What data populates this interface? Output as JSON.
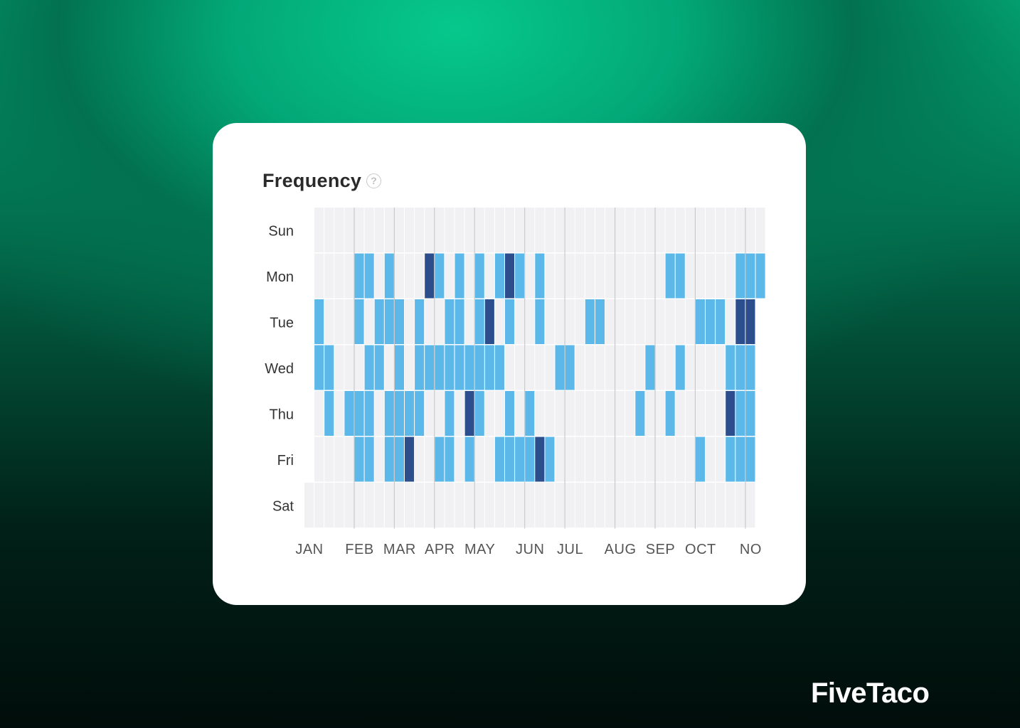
{
  "card": {
    "title": "Frequency",
    "help_icon": "question-circle-icon"
  },
  "brand": {
    "name": "FiveTaco"
  },
  "chart_data": {
    "type": "heatmap",
    "title": "Frequency",
    "y_categories": [
      "Sun",
      "Mon",
      "Tue",
      "Wed",
      "Thu",
      "Fri",
      "Sat"
    ],
    "x_tick_labels": [
      {
        "label": "JAN",
        "week": 0
      },
      {
        "label": "FEB",
        "week": 5
      },
      {
        "label": "MAR",
        "week": 9
      },
      {
        "label": "APR",
        "week": 13
      },
      {
        "label": "MAY",
        "week": 17
      },
      {
        "label": "JUN",
        "week": 22
      },
      {
        "label": "JUL",
        "week": 26
      },
      {
        "label": "AUG",
        "week": 31
      },
      {
        "label": "SEP",
        "week": 35
      },
      {
        "label": "OCT",
        "week": 39
      },
      {
        "label": "NO",
        "week": 44
      }
    ],
    "weeks": 46,
    "levels": {
      "0": "none",
      "1": "active",
      "2": "high"
    },
    "colors": {
      "empty": "#f1f1f3",
      "level1": "#5cb8e8",
      "level2": "#2c4e8c",
      "grid": "#ffffff",
      "month_line": "#c9c9c9"
    },
    "cells": [
      [
        2,
        45,
        1
      ],
      [
        1,
        5,
        1
      ],
      [
        1,
        6,
        1
      ],
      [
        1,
        8,
        1
      ],
      [
        1,
        12,
        2
      ],
      [
        1,
        13,
        1
      ],
      [
        1,
        15,
        1
      ],
      [
        1,
        17,
        1
      ],
      [
        1,
        19,
        1
      ],
      [
        1,
        20,
        2
      ],
      [
        1,
        21,
        1
      ],
      [
        1,
        23,
        1
      ],
      [
        1,
        36,
        1
      ],
      [
        1,
        37,
        1
      ],
      [
        1,
        43,
        1
      ],
      [
        1,
        44,
        1
      ],
      [
        1,
        45,
        1
      ],
      [
        2,
        1,
        1
      ],
      [
        2,
        5,
        1
      ],
      [
        2,
        7,
        1
      ],
      [
        2,
        8,
        1
      ],
      [
        2,
        9,
        1
      ],
      [
        2,
        11,
        1
      ],
      [
        2,
        14,
        1
      ],
      [
        2,
        15,
        1
      ],
      [
        2,
        17,
        1
      ],
      [
        2,
        18,
        2
      ],
      [
        2,
        20,
        1
      ],
      [
        2,
        23,
        1
      ],
      [
        2,
        28,
        1
      ],
      [
        2,
        29,
        1
      ],
      [
        2,
        39,
        1
      ],
      [
        2,
        40,
        1
      ],
      [
        2,
        41,
        1
      ],
      [
        2,
        43,
        2
      ],
      [
        2,
        44,
        2
      ],
      [
        3,
        1,
        1
      ],
      [
        3,
        2,
        1
      ],
      [
        3,
        6,
        1
      ],
      [
        3,
        7,
        1
      ],
      [
        3,
        9,
        1
      ],
      [
        3,
        11,
        1
      ],
      [
        3,
        12,
        1
      ],
      [
        3,
        13,
        1
      ],
      [
        3,
        14,
        1
      ],
      [
        3,
        15,
        1
      ],
      [
        3,
        16,
        1
      ],
      [
        3,
        17,
        1
      ],
      [
        3,
        18,
        1
      ],
      [
        3,
        19,
        1
      ],
      [
        3,
        25,
        1
      ],
      [
        3,
        26,
        1
      ],
      [
        3,
        34,
        1
      ],
      [
        3,
        37,
        1
      ],
      [
        3,
        42,
        1
      ],
      [
        3,
        43,
        1
      ],
      [
        3,
        44,
        1
      ],
      [
        4,
        2,
        1
      ],
      [
        4,
        4,
        1
      ],
      [
        4,
        5,
        1
      ],
      [
        4,
        6,
        1
      ],
      [
        4,
        8,
        1
      ],
      [
        4,
        9,
        1
      ],
      [
        4,
        10,
        1
      ],
      [
        4,
        11,
        1
      ],
      [
        4,
        14,
        1
      ],
      [
        4,
        16,
        2
      ],
      [
        4,
        17,
        1
      ],
      [
        4,
        20,
        1
      ],
      [
        4,
        22,
        1
      ],
      [
        4,
        33,
        1
      ],
      [
        4,
        36,
        1
      ],
      [
        4,
        42,
        2
      ],
      [
        4,
        43,
        1
      ],
      [
        4,
        44,
        1
      ],
      [
        5,
        5,
        1
      ],
      [
        5,
        6,
        1
      ],
      [
        5,
        8,
        1
      ],
      [
        5,
        9,
        1
      ],
      [
        5,
        10,
        2
      ],
      [
        5,
        13,
        1
      ],
      [
        5,
        14,
        1
      ],
      [
        5,
        16,
        1
      ],
      [
        5,
        19,
        1
      ],
      [
        5,
        20,
        1
      ],
      [
        5,
        21,
        1
      ],
      [
        5,
        22,
        1
      ],
      [
        5,
        23,
        2
      ],
      [
        5,
        24,
        1
      ],
      [
        5,
        39,
        1
      ],
      [
        5,
        42,
        1
      ],
      [
        5,
        43,
        1
      ],
      [
        5,
        44,
        1
      ]
    ]
  }
}
